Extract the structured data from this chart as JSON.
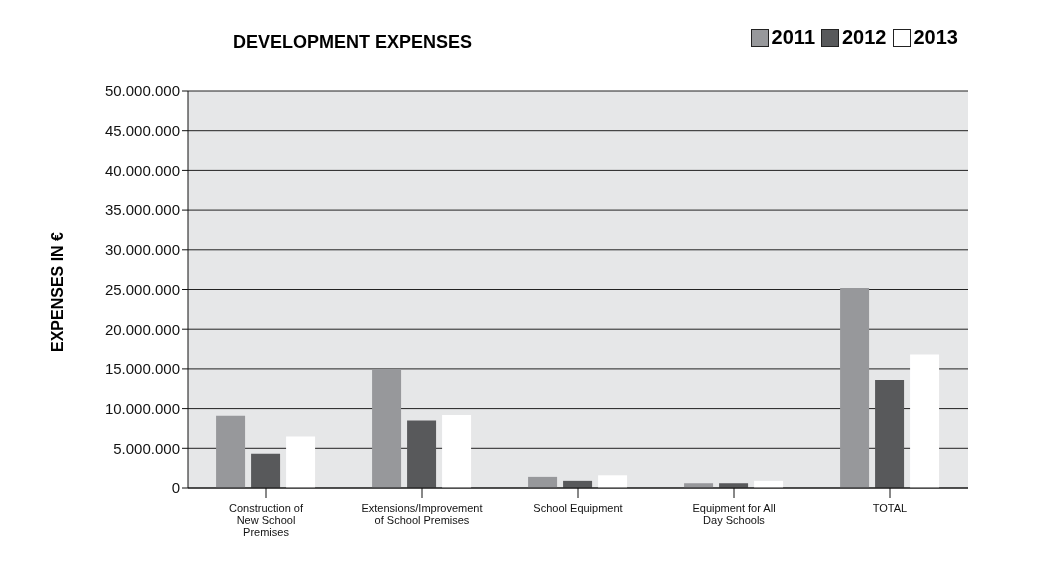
{
  "chart_data": {
    "type": "bar",
    "title": "DEVELOPMENT EXPENSES",
    "ylabel": "EXPENSES IN €",
    "categories": [
      "Construction of New School Premises",
      "Extensions/Improvement of School Premises",
      "School Equipment",
      "Equipment for All Day Schools",
      "TOTAL"
    ],
    "series": [
      {
        "name": "2011",
        "color": "#97989b",
        "values": [
          9100000,
          15000000,
          1400000,
          600000,
          25200000
        ]
      },
      {
        "name": "2012",
        "color": "#58595b",
        "values": [
          4300000,
          8500000,
          900000,
          600000,
          13600000
        ]
      },
      {
        "name": "2013",
        "color": "#ffffff",
        "values": [
          6500000,
          9200000,
          1600000,
          900000,
          16800000
        ]
      }
    ],
    "ylim": [
      0,
      50000000
    ],
    "yticks": [
      {
        "value": 0,
        "label": "0"
      },
      {
        "value": 5000000,
        "label": "5.000.000"
      },
      {
        "value": 10000000,
        "label": "10.000.000"
      },
      {
        "value": 15000000,
        "label": "15.000.000"
      },
      {
        "value": 20000000,
        "label": "20.000.000"
      },
      {
        "value": 25000000,
        "label": "25.000.000"
      },
      {
        "value": 30000000,
        "label": "30.000.000"
      },
      {
        "value": 35000000,
        "label": "35.000.000"
      },
      {
        "value": 40000000,
        "label": "40.000.000"
      },
      {
        "value": 45000000,
        "label": "45.000.000"
      },
      {
        "value": 50000000,
        "label": "50.000.000"
      }
    ],
    "grid": "y",
    "legend": "top right"
  }
}
